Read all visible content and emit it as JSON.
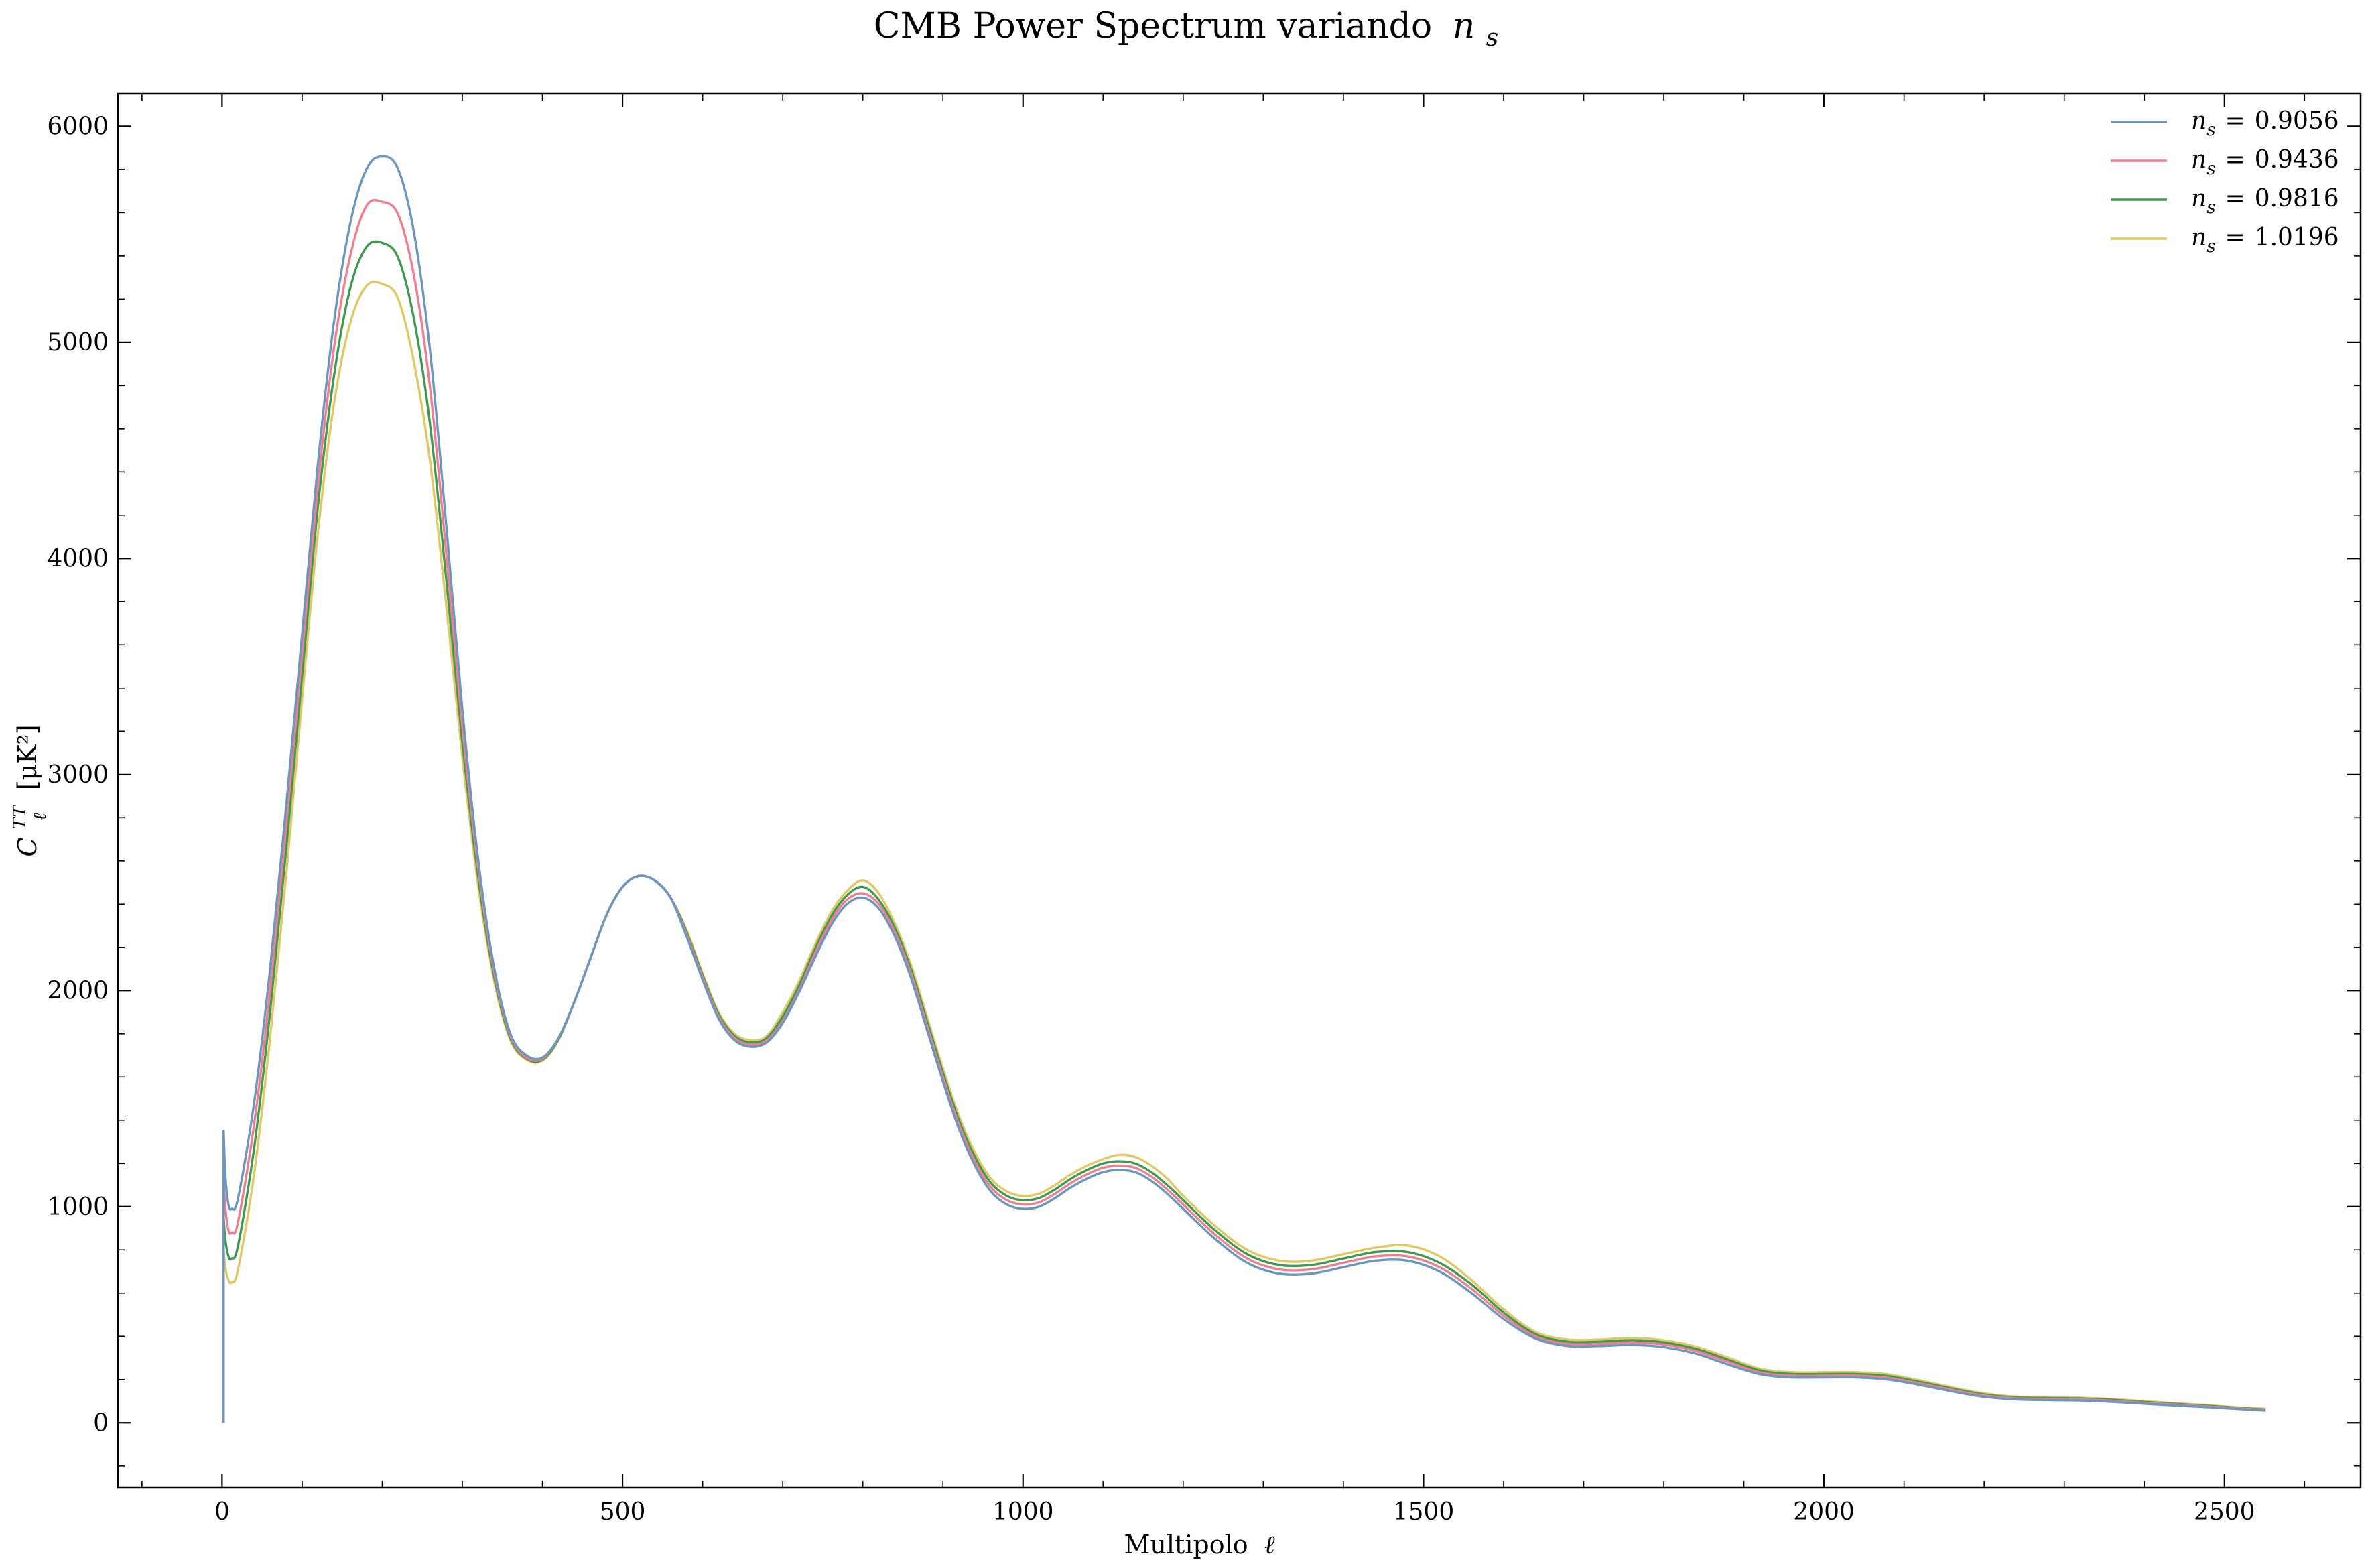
{
  "chart_data": {
    "type": "line",
    "title": "CMB Power Spectrum variando",
    "title_math": "n",
    "title_math_sub": "s",
    "xlabel": "Multipolo",
    "xlabel_math": "ℓ",
    "ylabel": "C",
    "ylabel_sup": "TT",
    "ylabel_sub": "ℓ",
    "ylabel_unit": "[μK²]",
    "xlim": [
      -130,
      2670
    ],
    "ylim": [
      -300,
      6150
    ],
    "x_ticks": [
      0,
      500,
      1000,
      1500,
      2000,
      2500
    ],
    "y_ticks": [
      0,
      1000,
      2000,
      3000,
      4000,
      5000,
      6000
    ],
    "x_tick_labels": [
      "0",
      "500",
      "1000",
      "1500",
      "2000",
      "2500"
    ],
    "y_tick_labels": [
      "0",
      "1000",
      "2000",
      "3000",
      "4000",
      "5000",
      "6000"
    ],
    "legend_position": "top-right",
    "grid": false,
    "x": [
      2,
      4,
      8,
      12,
      20,
      40,
      60,
      80,
      100,
      120,
      140,
      160,
      180,
      200,
      220,
      240,
      260,
      280,
      300,
      320,
      340,
      360,
      380,
      400,
      420,
      440,
      460,
      480,
      500,
      520,
      540,
      560,
      580,
      600,
      620,
      640,
      660,
      680,
      700,
      720,
      740,
      760,
      780,
      800,
      820,
      840,
      860,
      880,
      900,
      920,
      940,
      960,
      980,
      1000,
      1020,
      1040,
      1060,
      1080,
      1100,
      1120,
      1140,
      1160,
      1180,
      1200,
      1240,
      1280,
      1320,
      1360,
      1400,
      1440,
      1480,
      1520,
      1560,
      1600,
      1640,
      1680,
      1720,
      1760,
      1800,
      1840,
      1880,
      1920,
      1960,
      2000,
      2040,
      2080,
      2120,
      2160,
      2200,
      2240,
      2280,
      2320,
      2360,
      2400,
      2440,
      2480,
      2520,
      2550
    ],
    "series": [
      {
        "name": "0.9056",
        "color": "#6b96bf",
        "values": [
          1350,
          1150,
          1010,
          990,
          1040,
          1480,
          2100,
          2850,
          3650,
          4450,
          5100,
          5550,
          5800,
          5860,
          5800,
          5500,
          4950,
          4150,
          3300,
          2600,
          2100,
          1800,
          1700,
          1690,
          1780,
          1950,
          2150,
          2350,
          2480,
          2530,
          2510,
          2430,
          2250,
          2050,
          1870,
          1770,
          1740,
          1760,
          1850,
          1990,
          2150,
          2300,
          2400,
          2430,
          2380,
          2250,
          2060,
          1820,
          1580,
          1360,
          1190,
          1070,
          1010,
          990,
          1000,
          1040,
          1090,
          1130,
          1160,
          1170,
          1160,
          1120,
          1060,
          990,
          850,
          740,
          690,
          690,
          720,
          750,
          750,
          700,
          600,
          480,
          390,
          355,
          355,
          360,
          350,
          320,
          270,
          225,
          210,
          210,
          210,
          200,
          175,
          145,
          120,
          108,
          105,
          103,
          97,
          88,
          80,
          72,
          63,
          57
        ]
      },
      {
        "name": "0.9436",
        "color": "#f07e90",
        "values": [
          1150,
          1000,
          890,
          880,
          930,
          1380,
          2000,
          2760,
          3560,
          4350,
          4980,
          5400,
          5630,
          5650,
          5590,
          5300,
          4780,
          4020,
          3220,
          2560,
          2080,
          1790,
          1690,
          1685,
          1780,
          1950,
          2150,
          2350,
          2480,
          2530,
          2510,
          2430,
          2260,
          2060,
          1880,
          1780,
          1750,
          1770,
          1860,
          2000,
          2170,
          2320,
          2420,
          2450,
          2400,
          2270,
          2080,
          1840,
          1600,
          1380,
          1210,
          1090,
          1030,
          1010,
          1020,
          1060,
          1110,
          1150,
          1180,
          1190,
          1180,
          1140,
          1080,
          1010,
          870,
          760,
          710,
          710,
          740,
          770,
          770,
          720,
          620,
          495,
          400,
          365,
          365,
          372,
          362,
          332,
          282,
          233,
          218,
          218,
          218,
          208,
          182,
          152,
          126,
          113,
          110,
          108,
          102,
          92,
          84,
          75,
          66,
          60
        ]
      },
      {
        "name": "0.9816",
        "color": "#3f9a50",
        "values": [
          950,
          850,
          770,
          760,
          820,
          1270,
          1900,
          2650,
          3460,
          4250,
          4850,
          5250,
          5440,
          5460,
          5390,
          5100,
          4610,
          3900,
          3150,
          2520,
          2060,
          1780,
          1685,
          1680,
          1775,
          1950,
          2150,
          2350,
          2480,
          2530,
          2510,
          2430,
          2270,
          2070,
          1890,
          1790,
          1760,
          1780,
          1880,
          2020,
          2190,
          2340,
          2440,
          2480,
          2420,
          2290,
          2100,
          1860,
          1620,
          1400,
          1230,
          1110,
          1050,
          1030,
          1040,
          1080,
          1130,
          1170,
          1200,
          1210,
          1200,
          1160,
          1100,
          1030,
          890,
          780,
          730,
          730,
          760,
          790,
          790,
          740,
          640,
          510,
          410,
          375,
          375,
          382,
          372,
          342,
          292,
          242,
          226,
          226,
          226,
          216,
          189,
          158,
          131,
          117,
          114,
          112,
          106,
          96,
          87,
          78,
          68,
          62
        ]
      },
      {
        "name": "1.0196",
        "color": "#e0c964",
        "values": [
          800,
          720,
          660,
          650,
          710,
          1150,
          1780,
          2530,
          3350,
          4130,
          4720,
          5090,
          5260,
          5270,
          5200,
          4900,
          4440,
          3780,
          3080,
          2480,
          2040,
          1770,
          1680,
          1675,
          1770,
          1950,
          2150,
          2350,
          2480,
          2530,
          2510,
          2430,
          2280,
          2080,
          1900,
          1800,
          1770,
          1790,
          1900,
          2040,
          2210,
          2360,
          2460,
          2510,
          2450,
          2310,
          2120,
          1880,
          1640,
          1420,
          1250,
          1130,
          1070,
          1050,
          1060,
          1100,
          1150,
          1190,
          1220,
          1240,
          1230,
          1190,
          1130,
          1050,
          910,
          800,
          750,
          750,
          780,
          810,
          820,
          770,
          660,
          525,
          420,
          385,
          385,
          392,
          382,
          352,
          302,
          250,
          234,
          234,
          234,
          224,
          196,
          164,
          136,
          121,
          118,
          116,
          110,
          100,
          90,
          81,
          71,
          65
        ]
      }
    ]
  },
  "legend": {
    "label_prefix": "n",
    "label_sub": "s",
    "label_eq": "="
  }
}
